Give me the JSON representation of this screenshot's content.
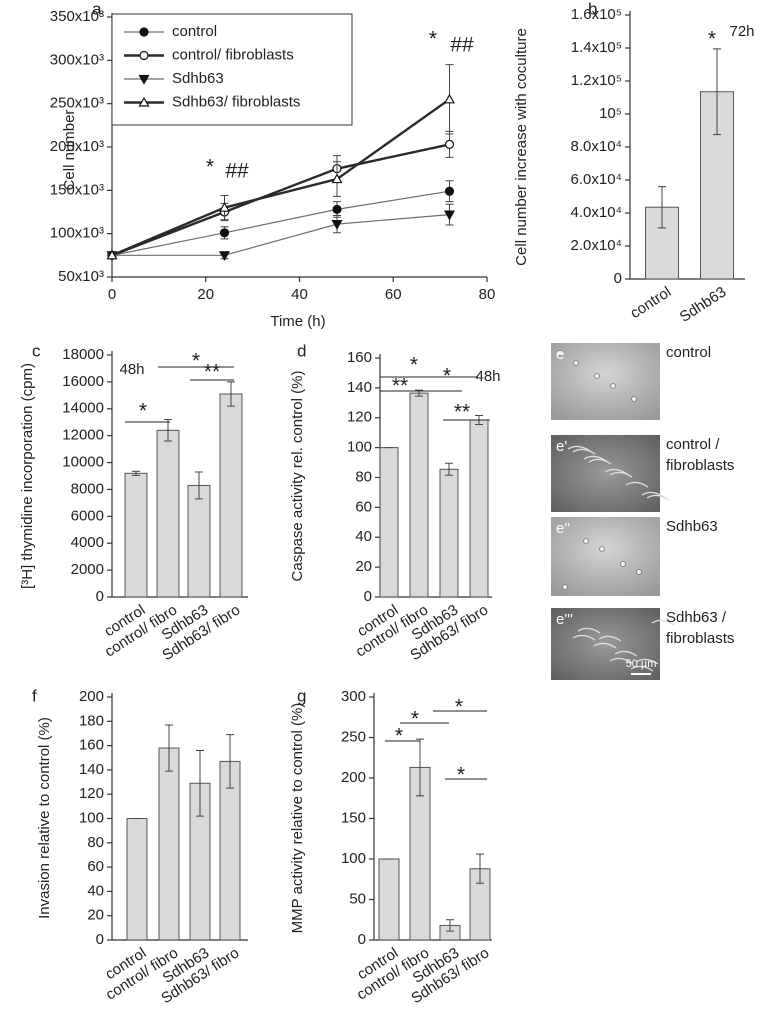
{
  "chart_data": [
    {
      "type": "line",
      "panel": "a",
      "xlabel": "Time (h)",
      "ylabel": "Cell number",
      "x": [
        0,
        24,
        48,
        72
      ],
      "xlim": [
        0,
        80
      ],
      "xticks": [
        0,
        20,
        40,
        60,
        80
      ],
      "ylim": [
        50000,
        350000
      ],
      "yticks": [
        {
          "value": 50000,
          "label": "50x10³"
        },
        {
          "value": 100000,
          "label": "100x10³"
        },
        {
          "value": 150000,
          "label": "150x10³"
        },
        {
          "value": 200000,
          "label": "200x10³"
        },
        {
          "value": 250000,
          "label": "250x10³"
        },
        {
          "value": 300000,
          "label": "300x10³"
        },
        {
          "value": 350000,
          "label": "350x10³"
        }
      ],
      "series": [
        {
          "name": "control",
          "color": "#6e6e6e",
          "marker": "circle",
          "filled": true,
          "line_width": 1.2,
          "values": [
            75000,
            101000,
            128000,
            149000
          ],
          "errors": [
            0,
            7000,
            9000,
            12000
          ]
        },
        {
          "name": "control/ fibroblasts",
          "color": "#2a2a2a",
          "marker": "circle",
          "filled": false,
          "line_width": 2.4,
          "values": [
            75000,
            125000,
            175000,
            203000
          ],
          "errors": [
            0,
            10000,
            15000,
            15000
          ]
        },
        {
          "name": "Sdhb63",
          "color": "#6e6e6e",
          "marker": "triangle-down",
          "filled": true,
          "line_width": 1.2,
          "values": [
            75000,
            75000,
            111000,
            122000
          ],
          "errors": [
            0,
            4000,
            10000,
            12000
          ]
        },
        {
          "name": "Sdhb63/ fibroblasts",
          "color": "#2a2a2a",
          "marker": "triangle-up",
          "filled": false,
          "line_width": 2.4,
          "values": [
            75000,
            130000,
            163000,
            255000
          ],
          "errors": [
            0,
            14000,
            20000,
            40000
          ]
        }
      ],
      "annotations": [
        "*",
        "##",
        "*",
        "##"
      ]
    },
    {
      "type": "bar",
      "panel": "b",
      "ylabel": "Cell number increase with coculture",
      "categories": [
        "control",
        "Sdhb63"
      ],
      "values": [
        43500,
        113500
      ],
      "errors": [
        12500,
        26000
      ],
      "color": "#d9d9d9",
      "ylim": [
        0,
        160000
      ],
      "yticks": [
        0,
        {
          "value": 20000,
          "label": "2.0x10⁴"
        },
        {
          "value": 40000,
          "label": "4.0x10⁴"
        },
        {
          "value": 60000,
          "label": "6.0x10⁴"
        },
        {
          "value": 80000,
          "label": "8.0x10⁴"
        },
        {
          "value": 100000,
          "label": "10⁵"
        },
        {
          "value": 120000,
          "label": "1.2x10⁵"
        },
        {
          "value": 140000,
          "label": "1.4x10⁵"
        },
        {
          "value": 160000,
          "label": "1.6x10⁵"
        }
      ],
      "annotations": [
        "*",
        "72h"
      ]
    },
    {
      "type": "bar",
      "panel": "c",
      "ylabel": "[³H] thymidine incorporation (cpm)",
      "categories": [
        "control",
        "control/ fibro",
        "Sdhb63",
        "Sdhb63/ fibro"
      ],
      "values": [
        9200,
        12400,
        8300,
        15100
      ],
      "errors": [
        150,
        800,
        1000,
        900
      ],
      "color": "#d9d9d9",
      "ylim": [
        0,
        18000
      ],
      "yticks": [
        0,
        2000,
        4000,
        6000,
        8000,
        10000,
        12000,
        14000,
        16000,
        18000
      ],
      "annotations": [
        "48h",
        "*",
        "*",
        "**"
      ]
    },
    {
      "type": "bar",
      "panel": "d",
      "ylabel": "Caspase activity rel. control (%)",
      "categories": [
        "control",
        "control/ fibro",
        "Sdhb63",
        "Sdhb63/ fibro"
      ],
      "values": [
        100,
        136.5,
        85.5,
        118.5
      ],
      "errors": [
        0,
        2,
        4,
        3
      ],
      "color": "#d9d9d9",
      "ylim": [
        0,
        160
      ],
      "yticks": [
        0,
        20,
        40,
        60,
        80,
        100,
        120,
        140,
        160
      ],
      "annotations": [
        "*",
        "**",
        "*",
        "48h",
        "**"
      ]
    },
    {
      "type": "bar",
      "panel": "f",
      "ylabel": "Invasion relative to control (%)",
      "categories": [
        "control",
        "control/ fibro",
        "Sdhb63",
        "Sdhb63/ fibro"
      ],
      "values": [
        100,
        158,
        129,
        147
      ],
      "errors": [
        0,
        19,
        27,
        22
      ],
      "color": "#d9d9d9",
      "ylim": [
        0,
        200
      ],
      "yticks": [
        0,
        20,
        40,
        60,
        80,
        100,
        120,
        140,
        160,
        180,
        200
      ],
      "annotations": []
    },
    {
      "type": "bar",
      "panel": "g",
      "ylabel": "MMP activity relative to control (%)",
      "categories": [
        "control",
        "control/ fibro",
        "Sdhb63",
        "Sdhb63/ fibro"
      ],
      "values": [
        100,
        213,
        18,
        88
      ],
      "errors": [
        0,
        35,
        7,
        18
      ],
      "color": "#d9d9d9",
      "ylim": [
        0,
        300
      ],
      "yticks": [
        0,
        50,
        100,
        150,
        200,
        250,
        300
      ],
      "annotations": [
        "*",
        "*",
        "*",
        "*"
      ]
    }
  ],
  "micrographs": {
    "panel": "e",
    "scale_bar": "50 µm",
    "images": [
      {
        "tag": "e",
        "label_lines": [
          "control"
        ]
      },
      {
        "tag": "e'",
        "label_lines": [
          "control /",
          "fibroblasts"
        ]
      },
      {
        "tag": "e''",
        "label_lines": [
          "Sdhb63"
        ]
      },
      {
        "tag": "e'''",
        "label_lines": [
          "Sdhb63 /",
          "fibroblasts"
        ]
      }
    ]
  }
}
